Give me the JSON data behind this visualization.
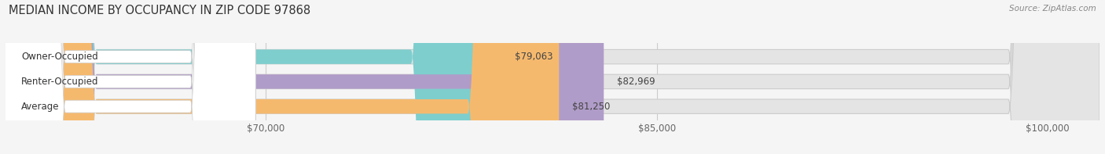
{
  "title": "MEDIAN INCOME BY OCCUPANCY IN ZIP CODE 97868",
  "source": "Source: ZipAtlas.com",
  "categories": [
    "Owner-Occupied",
    "Renter-Occupied",
    "Average"
  ],
  "values": [
    79063,
    82969,
    81250
  ],
  "bar_colors": [
    "#7ecece",
    "#b09cc8",
    "#f5b96e"
  ],
  "bar_bg_color": "#e4e4e4",
  "value_labels": [
    "$79,063",
    "$82,969",
    "$81,250"
  ],
  "xmin": 60000,
  "xmax": 102000,
  "xticks": [
    70000,
    85000,
    100000
  ],
  "xtick_labels": [
    "$70,000",
    "$85,000",
    "$100,000"
  ],
  "grid_color": "#cccccc",
  "title_fontsize": 10.5,
  "label_fontsize": 8.5,
  "tick_fontsize": 8.5,
  "bar_height": 0.58,
  "background_color": "#f5f5f5"
}
